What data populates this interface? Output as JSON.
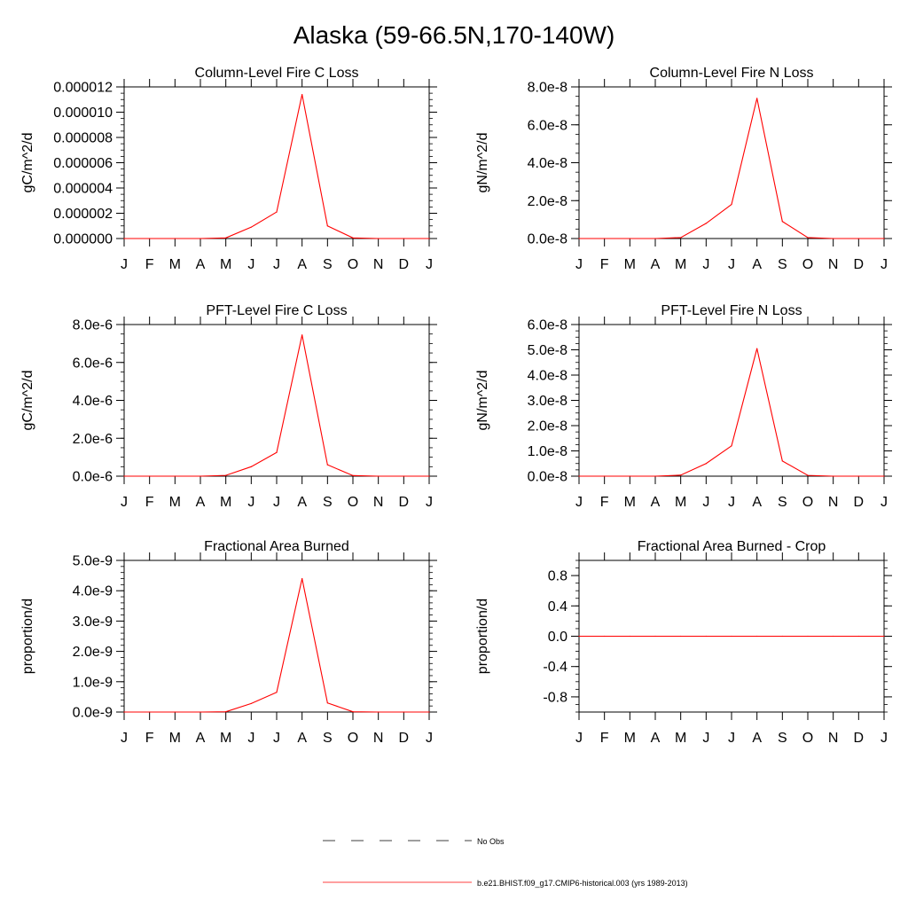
{
  "title": "Alaska (59-66.5N,170-140W)",
  "months": [
    "J",
    "F",
    "M",
    "A",
    "M",
    "J",
    "J",
    "A",
    "S",
    "O",
    "N",
    "D",
    "J"
  ],
  "line_color": "#ff0000",
  "chart_data": [
    {
      "type": "line",
      "title": "Column-Level Fire C Loss",
      "ylabel": "gC/m^2/d",
      "ylim": [
        0,
        1.2e-05
      ],
      "yticks": [
        0,
        2e-06,
        4e-06,
        6e-06,
        8e-06,
        1e-05,
        1.2e-05
      ],
      "yticklabels": [
        "0.000000",
        "0.000002",
        "0.000004",
        "0.000006",
        "0.000008",
        "0.000010",
        "0.000012"
      ],
      "minor_step": 5e-07,
      "values": [
        0,
        0,
        0,
        0,
        5e-08,
        9e-07,
        2.1e-06,
        1.14e-05,
        1e-06,
        5e-08,
        0,
        0,
        0
      ]
    },
    {
      "type": "line",
      "title": "Column-Level Fire N Loss",
      "ylabel": "gN/m^2/d",
      "ylim": [
        0,
        8e-08
      ],
      "yticks": [
        0,
        2e-08,
        4e-08,
        6e-08,
        8e-08
      ],
      "yticklabels": [
        "0.0e-8",
        "2.0e-8",
        "4.0e-8",
        "6.0e-8",
        "8.0e-8"
      ],
      "minor_step": 5e-09,
      "values": [
        0,
        0,
        0,
        0,
        5e-10,
        8e-09,
        1.8e-08,
        7.4e-08,
        9e-09,
        5e-10,
        0,
        0,
        0
      ]
    },
    {
      "type": "line",
      "title": "PFT-Level Fire C Loss",
      "ylabel": "gC/m^2/d",
      "ylim": [
        0,
        8e-06
      ],
      "yticks": [
        0,
        2e-06,
        4e-06,
        6e-06,
        8e-06
      ],
      "yticklabels": [
        "0.0e-6",
        "2.0e-6",
        "4.0e-6",
        "6.0e-6",
        "8.0e-6"
      ],
      "minor_step": 5e-07,
      "values": [
        0,
        0,
        0,
        0,
        4e-08,
        5e-07,
        1.25e-06,
        7.45e-06,
        6e-07,
        3e-08,
        0,
        0,
        0
      ]
    },
    {
      "type": "line",
      "title": "PFT-Level Fire N Loss",
      "ylabel": "gN/m^2/d",
      "ylim": [
        0,
        6e-08
      ],
      "yticks": [
        0,
        1e-08,
        2e-08,
        3e-08,
        4e-08,
        5e-08,
        6e-08
      ],
      "yticklabels": [
        "0.0e-8",
        "1.0e-8",
        "2.0e-8",
        "3.0e-8",
        "4.0e-8",
        "5.0e-8",
        "6.0e-8"
      ],
      "minor_step": 2.5e-09,
      "values": [
        0,
        0,
        0,
        0,
        4e-10,
        5e-09,
        1.2e-08,
        5.05e-08,
        6e-09,
        3e-10,
        0,
        0,
        0
      ]
    },
    {
      "type": "line",
      "title": "Fractional Area Burned",
      "ylabel": "proportion/d",
      "ylim": [
        0,
        5e-09
      ],
      "yticks": [
        0,
        1e-09,
        2e-09,
        3e-09,
        4e-09,
        5e-09
      ],
      "yticklabels": [
        "0.0e-9",
        "1.0e-9",
        "2.0e-9",
        "3.0e-9",
        "4.0e-9",
        "5.0e-9"
      ],
      "minor_step": 2e-10,
      "values": [
        0,
        0,
        0,
        0,
        1e-11,
        2.8e-10,
        6.5e-10,
        4.4e-09,
        3e-10,
        1e-11,
        0,
        0,
        0
      ]
    },
    {
      "type": "line",
      "title": "Fractional Area Burned - Crop",
      "ylabel": "proportion/d",
      "ylim": [
        -1,
        1
      ],
      "yticks": [
        -0.8,
        -0.4,
        0,
        0.4,
        0.8
      ],
      "yticklabels": [
        "-0.8",
        "-0.4",
        "0.0",
        "0.4",
        "0.8"
      ],
      "minor_step": 0.1,
      "values": [
        0,
        0,
        0,
        0,
        0,
        0,
        0,
        0,
        0,
        0,
        0,
        0,
        0
      ]
    }
  ],
  "legend": [
    {
      "label": "No Obs",
      "style": "dashed",
      "color": "#000000"
    },
    {
      "label": "b.e21.BHIST.f09_g17.CMIP6-historical.003 (yrs 1989-2013)",
      "style": "solid",
      "color": "#ff0000"
    }
  ]
}
